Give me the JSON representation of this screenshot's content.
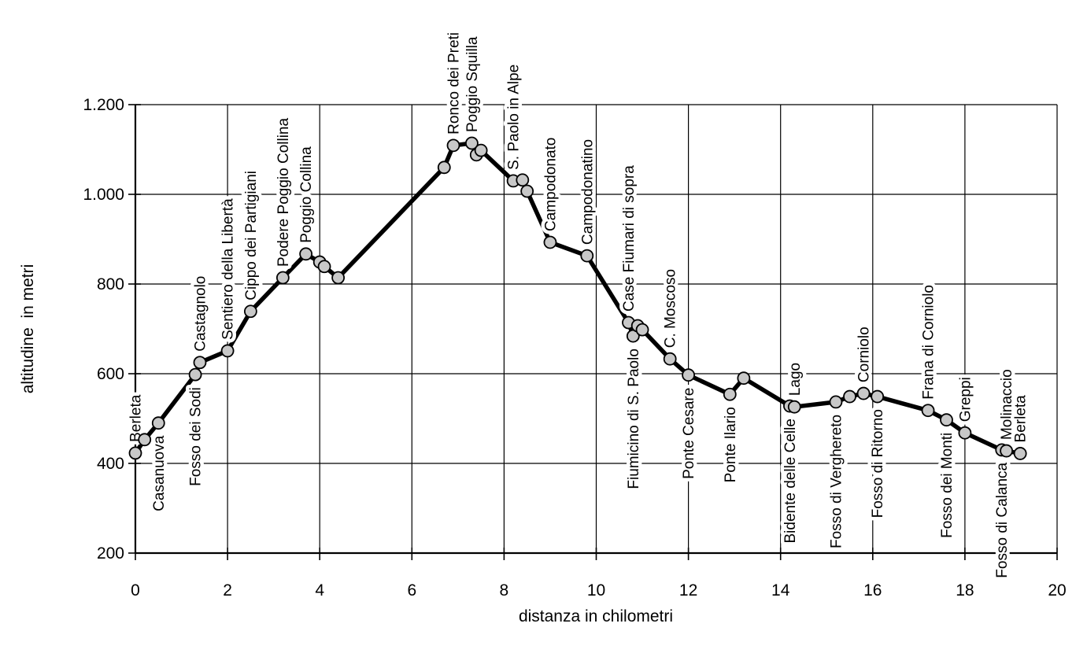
{
  "chart_data": {
    "type": "line",
    "title": "",
    "xlabel": "distanza in chilometri",
    "ylabel": "altitudine  in metri",
    "xlim": [
      0,
      20
    ],
    "ylim": [
      200,
      1200
    ],
    "x_ticks": [
      0,
      2,
      4,
      6,
      8,
      10,
      12,
      14,
      16,
      18,
      20
    ],
    "x_tick_labels": [
      "0",
      "2",
      "4",
      "6",
      "8",
      "10",
      "12",
      "14",
      "16",
      "18",
      "20"
    ],
    "y_ticks": [
      200,
      400,
      600,
      800,
      1000,
      1200
    ],
    "y_tick_labels": [
      "200",
      "400",
      "600",
      "800",
      "1.000",
      "1.200"
    ],
    "grid": "on",
    "legend": "none",
    "colors": {
      "line": "#000000",
      "marker_fill": "#c8c8c8",
      "marker_stroke": "#000000",
      "axis": "#000000",
      "gridline": "#000000",
      "background": "#ffffff"
    },
    "points": [
      {
        "km": 0.0,
        "alt": 423,
        "label": "Berleta",
        "label_side": "above"
      },
      {
        "km": 0.2,
        "alt": 453
      },
      {
        "km": 0.5,
        "alt": 490,
        "label": "Casanuova",
        "label_side": "below"
      },
      {
        "km": 1.3,
        "alt": 598,
        "label": "Fosso dei Sodi",
        "label_side": "below"
      },
      {
        "km": 1.4,
        "alt": 625,
        "label": "Castagnolo",
        "label_side": "above"
      },
      {
        "km": 2.0,
        "alt": 651,
        "label": "Sentiero della Libertà",
        "label_side": "above"
      },
      {
        "km": 2.5,
        "alt": 739,
        "label": "Cippo dei Partigiani",
        "label_side": "above"
      },
      {
        "km": 3.2,
        "alt": 814,
        "label": "Podere Poggio Collina",
        "label_side": "above"
      },
      {
        "km": 3.7,
        "alt": 867,
        "label": "Poggio Collina",
        "label_side": "above"
      },
      {
        "km": 4.0,
        "alt": 849
      },
      {
        "km": 4.1,
        "alt": 839
      },
      {
        "km": 4.4,
        "alt": 814
      },
      {
        "km": 6.7,
        "alt": 1060
      },
      {
        "km": 6.9,
        "alt": 1109,
        "label": "Ronco dei Preti",
        "label_side": "above"
      },
      {
        "km": 7.3,
        "alt": 1114,
        "label": "Poggio Squilla",
        "label_side": "above"
      },
      {
        "km": 7.4,
        "alt": 1088
      },
      {
        "km": 7.5,
        "alt": 1098
      },
      {
        "km": 8.2,
        "alt": 1030,
        "label": "S. Paolo in Alpe",
        "label_side": "above"
      },
      {
        "km": 8.4,
        "alt": 1032
      },
      {
        "km": 8.5,
        "alt": 1007
      },
      {
        "km": 9.0,
        "alt": 893,
        "label": "Campodonato",
        "label_side": "above"
      },
      {
        "km": 9.8,
        "alt": 863,
        "label": "Campodonatino",
        "label_side": "above"
      },
      {
        "km": 10.7,
        "alt": 714,
        "label": "Case Fiumari di sopra",
        "label_side": "above"
      },
      {
        "km": 10.8,
        "alt": 684,
        "label": "Fiumicino di S. Paolo",
        "label_side": "below"
      },
      {
        "km": 10.9,
        "alt": 707
      },
      {
        "km": 11.0,
        "alt": 698
      },
      {
        "km": 11.6,
        "alt": 633,
        "label": "C. Moscoso",
        "label_side": "above"
      },
      {
        "km": 12.0,
        "alt": 597,
        "label": "Ponte Cesare",
        "label_side": "below"
      },
      {
        "km": 12.9,
        "alt": 554,
        "label": "Ponte Ilario",
        "label_side": "below"
      },
      {
        "km": 13.2,
        "alt": 590
      },
      {
        "km": 14.2,
        "alt": 528,
        "label": "Bidente delle Celle",
        "label_side": "below"
      },
      {
        "km": 14.3,
        "alt": 526,
        "label": "Lago",
        "label_side": "above"
      },
      {
        "km": 15.2,
        "alt": 537,
        "label": "Fosso di Verghereto",
        "label_side": "below"
      },
      {
        "km": 15.5,
        "alt": 549
      },
      {
        "km": 15.8,
        "alt": 556,
        "label": "Corniolo",
        "label_side": "above"
      },
      {
        "km": 16.1,
        "alt": 549,
        "label": "Fosso di Ritorno",
        "label_side": "below"
      },
      {
        "km": 17.2,
        "alt": 518,
        "label": "Frana di Corniolo",
        "label_side": "above"
      },
      {
        "km": 17.6,
        "alt": 497,
        "label": "Fosso dei Monti",
        "label_side": "below"
      },
      {
        "km": 18.0,
        "alt": 468,
        "label": "Greppi",
        "label_side": "above"
      },
      {
        "km": 18.8,
        "alt": 430,
        "label": "Fosso di Calanca",
        "label_side": "below"
      },
      {
        "km": 18.9,
        "alt": 428,
        "label": "Molinaccio",
        "label_side": "above"
      },
      {
        "km": 19.2,
        "alt": 422,
        "label": "Berleta",
        "label_side": "above"
      }
    ]
  }
}
